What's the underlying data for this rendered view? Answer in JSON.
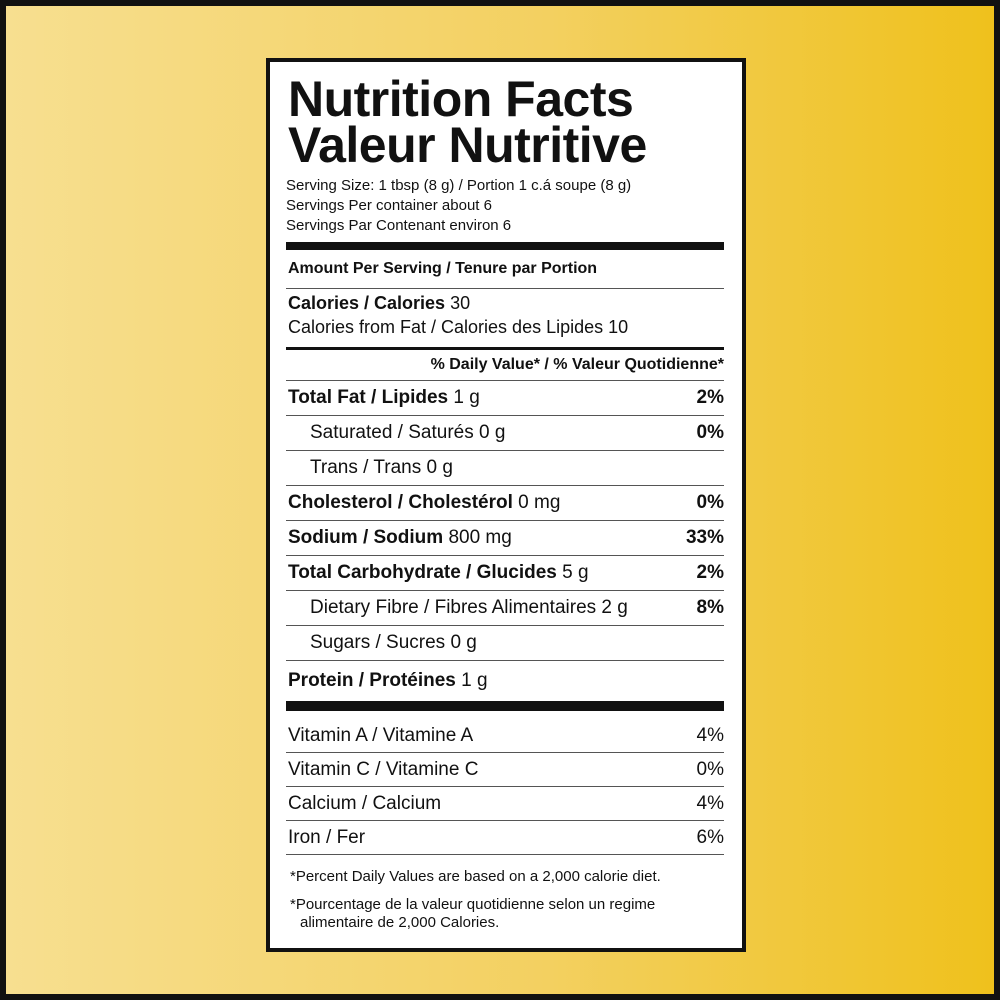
{
  "title": [
    "Nutrition Facts",
    "Valeur Nutritive"
  ],
  "serving": [
    "Serving Size: 1 tbsp (8 g) / Portion 1 c.á soupe (8 g)",
    "Servings Per container about 6",
    "Servings Par Contenant environ 6"
  ],
  "amount_header": "Amount Per Serving / Tenure par Portion",
  "calories": {
    "label": "Calories / Calories",
    "amount": "30"
  },
  "calories_from_fat": "Calories from Fat / Calories des Lipides 10",
  "daily_value_header": "% Daily Value* / % Valeur Quotidienne*",
  "nutrients": [
    {
      "name": "Total Fat / Lipides",
      "amount": "1 g",
      "dv": "2%",
      "sub": [
        {
          "name": "Saturated / Saturés 0 g",
          "dv": "0%"
        },
        {
          "name": "Trans / Trans 0 g"
        }
      ]
    },
    {
      "name": "Cholesterol / Cholestérol",
      "amount": "0 mg",
      "dv": "0%"
    },
    {
      "name": "Sodium / Sodium",
      "amount": "800 mg",
      "dv": "33%"
    },
    {
      "name": "Total Carbohydrate / Glucides",
      "amount": "5 g",
      "dv": "2%",
      "sub": [
        {
          "name": "Dietary Fibre / Fibres Alimentaires 2 g",
          "dv": "8%"
        },
        {
          "name": "Sugars / Sucres 0 g"
        }
      ]
    },
    {
      "name": "Protein / Protéines",
      "amount": "1 g"
    }
  ],
  "vitamins": [
    {
      "name": "Vitamin A / Vitamine A",
      "dv": "4%"
    },
    {
      "name": "Vitamin C / Vitamine C",
      "dv": "0%"
    },
    {
      "name": "Calcium / Calcium",
      "dv": "4%"
    },
    {
      "name": "Iron / Fer",
      "dv": "6%"
    }
  ],
  "footnotes": [
    "*Percent Daily Values are based on a 2,000 calorie diet.",
    "*Pourcentage de la valeur quotidienne selon un regime alimentaire de 2,000 Calories."
  ]
}
